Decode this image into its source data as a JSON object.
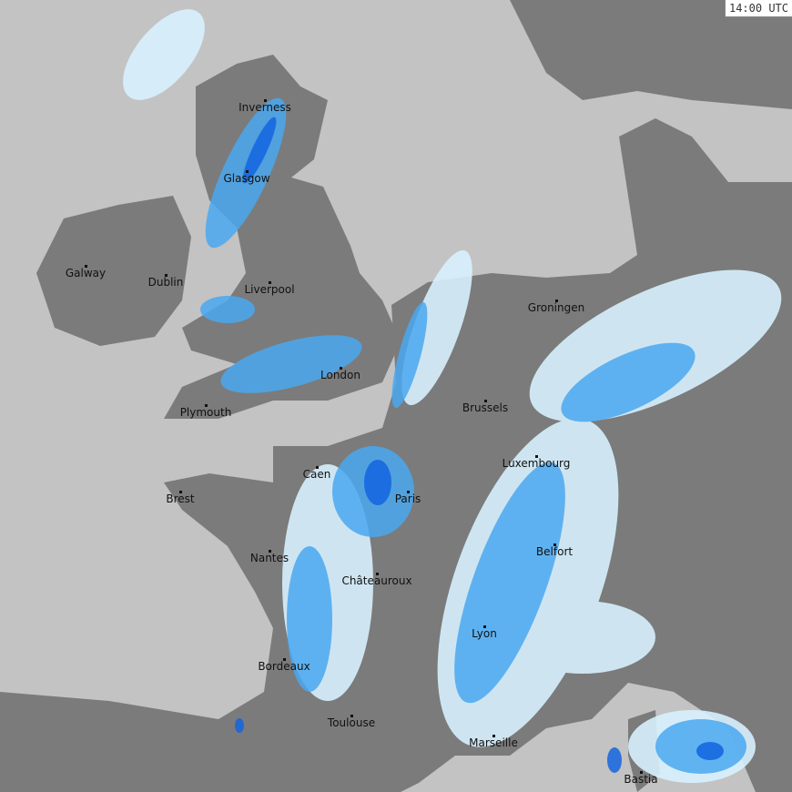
{
  "timestamp": "14:00 UTC",
  "colors": {
    "sea": "#c3c3c3",
    "land": "#7b7b7b",
    "rain_light": "#d8f2ff",
    "rain_moderate": "#4aa8f0",
    "rain_heavy": "#1464e0"
  },
  "cities": [
    {
      "name": "Inverness"
    },
    {
      "name": "Glasgow"
    },
    {
      "name": "Galway"
    },
    {
      "name": "Dublin"
    },
    {
      "name": "Liverpool"
    },
    {
      "name": "London"
    },
    {
      "name": "Plymouth"
    },
    {
      "name": "Groningen"
    },
    {
      "name": "Brussels"
    },
    {
      "name": "Luxembourg"
    },
    {
      "name": "Caen"
    },
    {
      "name": "Brest"
    },
    {
      "name": "Paris"
    },
    {
      "name": "Belfort"
    },
    {
      "name": "Nantes"
    },
    {
      "name": "Châteauroux"
    },
    {
      "name": "Lyon"
    },
    {
      "name": "Bordeaux"
    },
    {
      "name": "Toulouse"
    },
    {
      "name": "Marseille"
    },
    {
      "name": "Bastia"
    }
  ]
}
